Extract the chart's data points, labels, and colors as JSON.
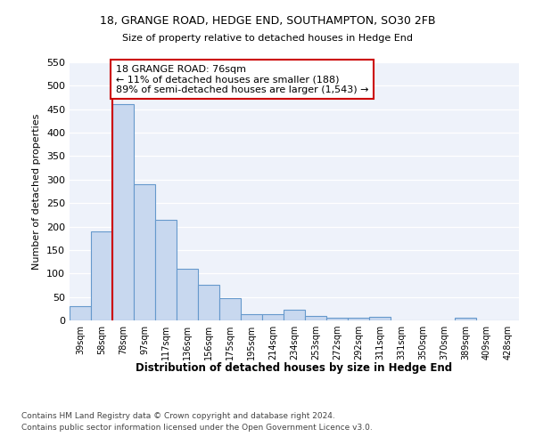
{
  "title1": "18, GRANGE ROAD, HEDGE END, SOUTHAMPTON, SO30 2FB",
  "title2": "Size of property relative to detached houses in Hedge End",
  "xlabel": "Distribution of detached houses by size in Hedge End",
  "ylabel": "Number of detached properties",
  "bins": [
    "39sqm",
    "58sqm",
    "78sqm",
    "97sqm",
    "117sqm",
    "136sqm",
    "156sqm",
    "175sqm",
    "195sqm",
    "214sqm",
    "234sqm",
    "253sqm",
    "272sqm",
    "292sqm",
    "311sqm",
    "331sqm",
    "350sqm",
    "370sqm",
    "389sqm",
    "409sqm",
    "428sqm"
  ],
  "values": [
    30,
    190,
    460,
    290,
    215,
    110,
    75,
    47,
    14,
    13,
    22,
    10,
    5,
    5,
    7,
    0,
    0,
    0,
    6,
    0,
    0
  ],
  "bar_color": "#c8d8ef",
  "bar_edge_color": "#6699cc",
  "vline_x_index": 2,
  "vline_color": "#cc0000",
  "annotation_text": "18 GRANGE ROAD: 76sqm\n← 11% of detached houses are smaller (188)\n89% of semi-detached houses are larger (1,543) →",
  "annotation_box_color": "white",
  "annotation_box_edge": "#cc0000",
  "footer1": "Contains HM Land Registry data © Crown copyright and database right 2024.",
  "footer2": "Contains public sector information licensed under the Open Government Licence v3.0.",
  "background_color": "#eef2fa",
  "grid_color": "#ffffff",
  "ylim": [
    0,
    550
  ],
  "yticks": [
    0,
    50,
    100,
    150,
    200,
    250,
    300,
    350,
    400,
    450,
    500,
    550
  ]
}
